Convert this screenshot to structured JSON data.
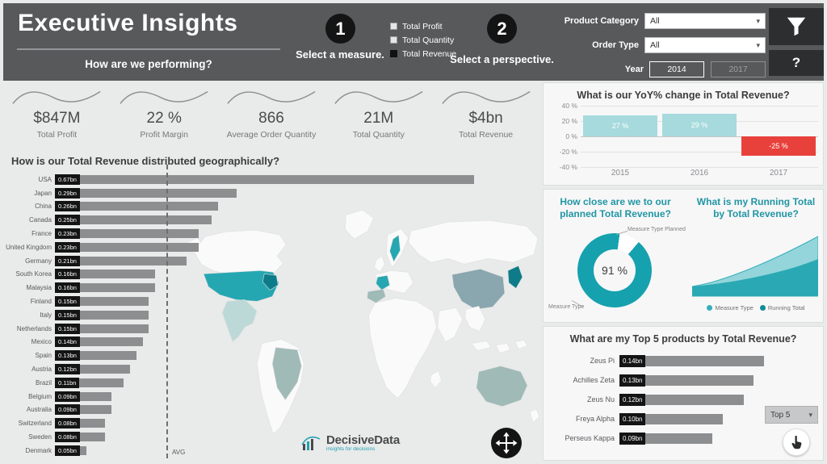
{
  "colors": {
    "header_bg": "#58595b",
    "page_bg": "#e9eaea",
    "accent_teal": "#1fa3af",
    "light_teal": "#a6dadd",
    "negative_red": "#e8413c",
    "bar_gray": "#8c8e90",
    "label_box_black": "#141414"
  },
  "header": {
    "title": "Executive Insights",
    "subtitle": "How are we performing?",
    "step1_number": "1",
    "step1_label": "Select a measure.",
    "step2_number": "2",
    "step2_label": "Select a perspective.",
    "measures": [
      {
        "label": "Total Profit",
        "selected": false
      },
      {
        "label": "Total Quantity",
        "selected": false
      },
      {
        "label": "Total Revenue",
        "selected": true
      }
    ],
    "filters": {
      "product_category_label": "Product Category",
      "product_category_value": "All",
      "order_type_label": "Order Type",
      "order_type_value": "All",
      "year_label": "Year",
      "year_start": "2014",
      "year_end": "2017"
    },
    "help_label": "?"
  },
  "kpis": [
    {
      "value": "$847M",
      "label": "Total Profit"
    },
    {
      "value": "22 %",
      "label": "Profit Margin"
    },
    {
      "value": "866",
      "label": "Average Order Quantity"
    },
    {
      "value": "21M",
      "label": "Total Quantity"
    },
    {
      "value": "$4bn",
      "label": "Total Revenue"
    }
  ],
  "geo_section": {
    "title": "How is our Total Revenue distributed geographically?",
    "avg_label": "AVG"
  },
  "logo": {
    "name": "DecisiveData",
    "tagline": "insights for decisions"
  },
  "panels": {
    "yoy_title": "What is our YoY% change in Total Revenue?",
    "planned_title": "How close are we to our planned Total Revenue?",
    "planned_center": "91 %",
    "planned_annotation_top": "Measure Type Planned",
    "planned_annotation_bottom": "Measure Type",
    "running_title": "What is my Running Total by Total Revenue?",
    "top5_title": "What are my Top 5 products by Total Revenue?",
    "top5_dropdown": "Top 5"
  },
  "chart_data": [
    {
      "id": "geo_revenue_by_country",
      "type": "bar",
      "orientation": "horizontal",
      "title": "How is our Total Revenue distributed geographically?",
      "unit": "bn",
      "categories": [
        "USA",
        "Japan",
        "China",
        "Canada",
        "France",
        "United Kingdom",
        "Germany",
        "South Korea",
        "Malaysia",
        "Finland",
        "Italy",
        "Netherlands",
        "Mexico",
        "Spain",
        "Austria",
        "Brazil",
        "Belgium",
        "Australia",
        "Switzerland",
        "Sweden",
        "Denmark"
      ],
      "values": [
        0.67,
        0.29,
        0.26,
        0.25,
        0.23,
        0.23,
        0.21,
        0.16,
        0.16,
        0.15,
        0.15,
        0.15,
        0.14,
        0.13,
        0.12,
        0.11,
        0.09,
        0.09,
        0.08,
        0.08,
        0.05
      ],
      "labels": [
        "0.67bn",
        "0.29bn",
        "0.26bn",
        "0.25bn",
        "0.23bn",
        "0.23bn",
        "0.21bn",
        "0.16bn",
        "0.16bn",
        "0.15bn",
        "0.15bn",
        "0.15bn",
        "0.14bn",
        "0.13bn",
        "0.12bn",
        "0.11bn",
        "0.09bn",
        "0.09bn",
        "0.08bn",
        "0.08bn",
        "0.05bn"
      ],
      "annotations": [
        "AVG"
      ]
    },
    {
      "id": "yoy_change",
      "type": "bar",
      "title": "What is our YoY% change in Total Revenue?",
      "categories": [
        "2015",
        "2016",
        "2017"
      ],
      "values": [
        27,
        29,
        -25
      ],
      "labels": [
        "27 %",
        "29 %",
        "-25 %"
      ],
      "ylim": [
        -40,
        40
      ],
      "yticks": [
        "40 %",
        "20 %",
        "0 %",
        "-20 %",
        "-40 %"
      ],
      "grid": true
    },
    {
      "id": "planned_donut",
      "type": "pie",
      "title": "How close are we to our planned Total Revenue?",
      "slices": [
        {
          "label": "Measure Type",
          "value": 91
        },
        {
          "label": "Measure Type Planned",
          "value": 9
        }
      ],
      "center_label": "91 %"
    },
    {
      "id": "running_total",
      "type": "area",
      "title": "What is my Running Total by Total Revenue?",
      "legend": [
        "Measure Type",
        "Running Total"
      ],
      "legend_position": "bottom"
    },
    {
      "id": "top5_products",
      "type": "bar",
      "orientation": "horizontal",
      "title": "What are my Top 5 products by Total Revenue?",
      "categories": [
        "Zeus Pi",
        "Achilles Zeta",
        "Zeus Nu",
        "Freya Alpha",
        "Perseus Kappa"
      ],
      "values": [
        0.14,
        0.13,
        0.12,
        0.1,
        0.09
      ],
      "labels": [
        "0.14bn",
        "0.13bn",
        "0.12bn",
        "0.10bn",
        "0.09bn"
      ]
    }
  ]
}
